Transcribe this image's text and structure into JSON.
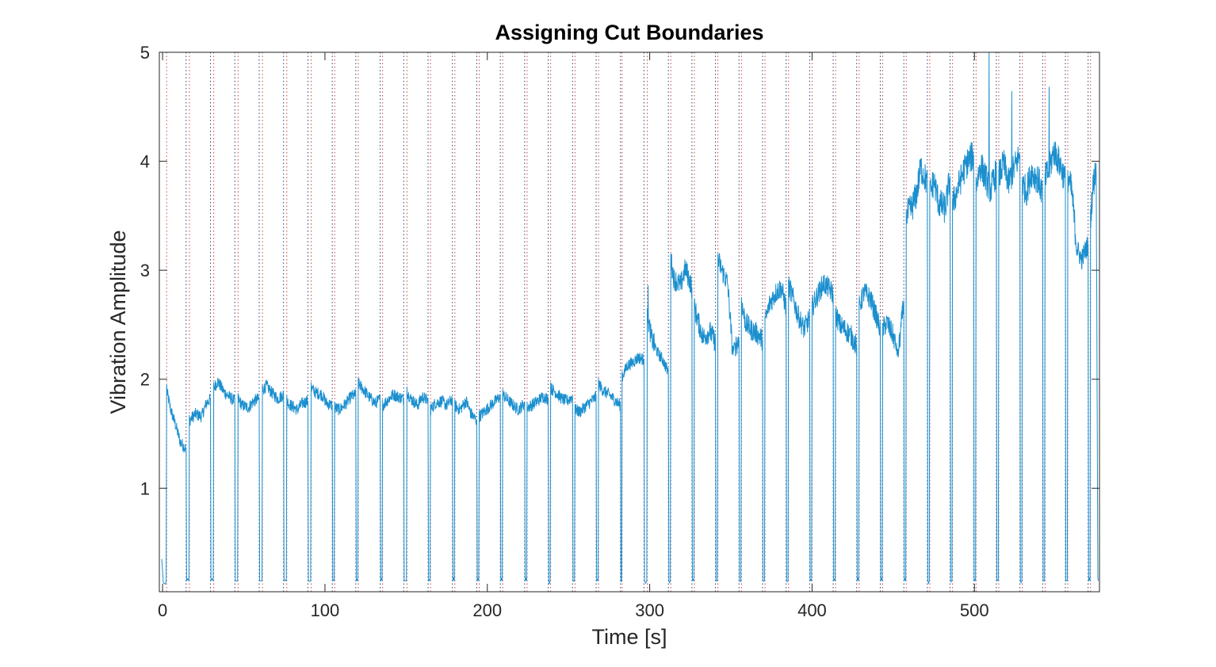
{
  "chart_data": {
    "type": "line",
    "title": "Assigning Cut Boundaries",
    "xlabel": "Time [s]",
    "ylabel": "Vibration Amplitude",
    "xlim": [
      -2,
      577
    ],
    "ylim": [
      0.05,
      5
    ],
    "xticks": [
      0,
      100,
      200,
      300,
      400,
      500
    ],
    "yticks": [
      1,
      2,
      3,
      4,
      5
    ],
    "grid": false,
    "legend": "none",
    "box": true,
    "colors": {
      "signal": "#1b8fce",
      "cut_start": "#d9443f",
      "cut_end": "#2b3f7a",
      "axis": "#262626"
    },
    "cut_starts": [
      2.5,
      16.5,
      31.5,
      46.5,
      61.5,
      76.5,
      91.5,
      106.0,
      120.5,
      135.5,
      150.5,
      165.0,
      180.0,
      195.0,
      209.5,
      224.5,
      239.0,
      254.0,
      268.5,
      283.0,
      298.5,
      313.0,
      327.5,
      342.0,
      356.5,
      371.0,
      385.5,
      400.0,
      414.5,
      429.0,
      443.5,
      458.0,
      472.5,
      486.5,
      501.0,
      515.0,
      529.5,
      543.5,
      557.5,
      571.5
    ],
    "cut_ends": [
      14.5,
      29.5,
      44.5,
      59.5,
      74.5,
      89.5,
      104.5,
      119.0,
      134.0,
      148.5,
      163.5,
      178.5,
      193.5,
      208.0,
      223.0,
      237.5,
      252.5,
      267.0,
      282.0,
      296.5,
      311.5,
      326.0,
      340.5,
      355.0,
      369.5,
      384.0,
      398.5,
      413.0,
      427.5,
      442.0,
      456.5,
      471.0,
      485.0,
      499.5,
      513.5,
      528.0,
      542.0,
      556.0,
      570.0
    ],
    "segments": [
      {
        "start": 2.5,
        "end": 14.5,
        "points": [
          [
            2.5,
            1.9
          ],
          [
            5,
            1.72
          ],
          [
            8,
            1.58
          ],
          [
            11,
            1.42
          ],
          [
            14.5,
            1.36
          ]
        ]
      },
      {
        "start": 16.5,
        "end": 29.5,
        "points": [
          [
            16.5,
            1.62
          ],
          [
            20,
            1.68
          ],
          [
            24,
            1.66
          ],
          [
            27,
            1.78
          ],
          [
            29.5,
            1.82
          ]
        ]
      },
      {
        "start": 31.5,
        "end": 44.5,
        "points": [
          [
            31.5,
            1.92
          ],
          [
            34,
            1.98
          ],
          [
            38,
            1.88
          ],
          [
            41,
            1.84
          ],
          [
            44.5,
            1.8
          ]
        ]
      },
      {
        "start": 46.5,
        "end": 59.5,
        "points": [
          [
            46.5,
            1.82
          ],
          [
            49,
            1.76
          ],
          [
            53,
            1.74
          ],
          [
            56,
            1.8
          ],
          [
            59.5,
            1.82
          ]
        ]
      },
      {
        "start": 61.5,
        "end": 74.5,
        "points": [
          [
            61.5,
            1.9
          ],
          [
            64,
            1.94
          ],
          [
            67,
            1.88
          ],
          [
            71,
            1.82
          ],
          [
            74.5,
            1.86
          ]
        ]
      },
      {
        "start": 76.5,
        "end": 89.5,
        "points": [
          [
            76.5,
            1.8
          ],
          [
            79,
            1.76
          ],
          [
            83,
            1.72
          ],
          [
            86,
            1.78
          ],
          [
            89.5,
            1.8
          ]
        ]
      },
      {
        "start": 91.5,
        "end": 104.5,
        "points": [
          [
            91.5,
            1.92
          ],
          [
            94,
            1.88
          ],
          [
            98,
            1.86
          ],
          [
            101,
            1.78
          ],
          [
            104.5,
            1.76
          ]
        ]
      },
      {
        "start": 106.0,
        "end": 119.0,
        "points": [
          [
            106,
            1.74
          ],
          [
            109,
            1.72
          ],
          [
            113,
            1.78
          ],
          [
            116,
            1.84
          ],
          [
            119,
            1.86
          ]
        ]
      },
      {
        "start": 120.5,
        "end": 134.0,
        "points": [
          [
            120.5,
            1.96
          ],
          [
            123,
            1.92
          ],
          [
            127,
            1.84
          ],
          [
            131,
            1.78
          ],
          [
            134,
            1.82
          ]
        ]
      },
      {
        "start": 135.5,
        "end": 148.5,
        "points": [
          [
            135.5,
            1.76
          ],
          [
            138,
            1.8
          ],
          [
            142,
            1.86
          ],
          [
            145,
            1.84
          ],
          [
            148.5,
            1.82
          ]
        ]
      },
      {
        "start": 150.5,
        "end": 163.5,
        "points": [
          [
            150.5,
            1.88
          ],
          [
            153,
            1.82
          ],
          [
            157,
            1.76
          ],
          [
            160,
            1.84
          ],
          [
            163.5,
            1.8
          ]
        ]
      },
      {
        "start": 165.0,
        "end": 178.5,
        "points": [
          [
            165,
            1.72
          ],
          [
            168,
            1.78
          ],
          [
            172,
            1.8
          ],
          [
            175,
            1.76
          ],
          [
            178.5,
            1.82
          ]
        ]
      },
      {
        "start": 180.0,
        "end": 193.5,
        "points": [
          [
            180,
            1.76
          ],
          [
            183,
            1.72
          ],
          [
            187,
            1.8
          ],
          [
            190,
            1.68
          ],
          [
            193.5,
            1.62
          ]
        ]
      },
      {
        "start": 195.0,
        "end": 208.0,
        "points": [
          [
            195,
            1.66
          ],
          [
            198,
            1.7
          ],
          [
            202,
            1.76
          ],
          [
            205,
            1.8
          ],
          [
            208,
            1.84
          ]
        ]
      },
      {
        "start": 209.5,
        "end": 223.0,
        "points": [
          [
            209.5,
            1.86
          ],
          [
            212,
            1.82
          ],
          [
            216,
            1.76
          ],
          [
            219,
            1.72
          ],
          [
            223,
            1.78
          ]
        ]
      },
      {
        "start": 224.5,
        "end": 237.5,
        "points": [
          [
            224.5,
            1.74
          ],
          [
            227,
            1.76
          ],
          [
            231,
            1.8
          ],
          [
            234,
            1.84
          ],
          [
            237.5,
            1.82
          ]
        ]
      },
      {
        "start": 239.0,
        "end": 252.5,
        "points": [
          [
            239,
            1.92
          ],
          [
            242,
            1.88
          ],
          [
            246,
            1.82
          ],
          [
            249,
            1.8
          ],
          [
            252.5,
            1.84
          ]
        ]
      },
      {
        "start": 254.0,
        "end": 267.0,
        "points": [
          [
            254,
            1.72
          ],
          [
            257,
            1.7
          ],
          [
            261,
            1.76
          ],
          [
            264,
            1.8
          ],
          [
            267,
            1.84
          ]
        ]
      },
      {
        "start": 268.5,
        "end": 282.0,
        "points": [
          [
            268.5,
            1.96
          ],
          [
            271,
            1.9
          ],
          [
            275,
            1.86
          ],
          [
            279,
            1.8
          ],
          [
            282,
            1.76
          ]
        ]
      },
      {
        "start": 283.0,
        "end": 296.5,
        "points": [
          [
            283,
            2.02
          ],
          [
            286,
            2.12
          ],
          [
            290,
            2.16
          ],
          [
            293,
            2.2
          ],
          [
            296.5,
            2.18
          ]
        ]
      },
      {
        "start": 298.5,
        "end": 311.5,
        "points": [
          [
            298.5,
            2.6
          ],
          [
            301,
            2.38
          ],
          [
            305,
            2.24
          ],
          [
            308,
            2.18
          ],
          [
            311.5,
            2.06
          ]
        ]
      },
      {
        "start": 313.0,
        "end": 326.0,
        "points": [
          [
            313,
            3.1
          ],
          [
            315,
            2.92
          ],
          [
            319,
            2.86
          ],
          [
            322,
            3.02
          ],
          [
            326,
            2.84
          ]
        ]
      },
      {
        "start": 327.5,
        "end": 340.5,
        "points": [
          [
            327.5,
            2.66
          ],
          [
            330,
            2.52
          ],
          [
            333,
            2.38
          ],
          [
            337,
            2.44
          ],
          [
            340.5,
            2.34
          ]
        ]
      },
      {
        "start": 342.0,
        "end": 355.0,
        "points": [
          [
            342,
            3.1
          ],
          [
            345,
            2.98
          ],
          [
            348,
            2.88
          ],
          [
            351,
            2.26
          ],
          [
            355,
            2.36
          ]
        ]
      },
      {
        "start": 356.5,
        "end": 369.5,
        "points": [
          [
            356.5,
            2.7
          ],
          [
            359,
            2.52
          ],
          [
            362,
            2.46
          ],
          [
            366,
            2.42
          ],
          [
            369.5,
            2.36
          ]
        ]
      },
      {
        "start": 371.0,
        "end": 384.0,
        "points": [
          [
            371,
            2.52
          ],
          [
            374,
            2.7
          ],
          [
            378,
            2.8
          ],
          [
            381,
            2.84
          ],
          [
            384,
            2.66
          ]
        ]
      },
      {
        "start": 385.5,
        "end": 398.5,
        "points": [
          [
            385.5,
            2.86
          ],
          [
            388,
            2.76
          ],
          [
            391,
            2.6
          ],
          [
            395,
            2.46
          ],
          [
            398.5,
            2.56
          ]
        ]
      },
      {
        "start": 400.0,
        "end": 413.0,
        "points": [
          [
            400,
            2.66
          ],
          [
            403,
            2.76
          ],
          [
            407,
            2.88
          ],
          [
            410,
            2.84
          ],
          [
            413,
            2.78
          ]
        ]
      },
      {
        "start": 414.5,
        "end": 427.5,
        "points": [
          [
            414.5,
            2.6
          ],
          [
            417,
            2.5
          ],
          [
            420,
            2.46
          ],
          [
            424,
            2.4
          ],
          [
            427.5,
            2.3
          ]
        ]
      },
      {
        "start": 429.0,
        "end": 442.0,
        "points": [
          [
            429,
            2.66
          ],
          [
            432,
            2.8
          ],
          [
            436,
            2.74
          ],
          [
            439,
            2.6
          ],
          [
            442,
            2.46
          ]
        ]
      },
      {
        "start": 443.5,
        "end": 456.5,
        "points": [
          [
            443.5,
            2.46
          ],
          [
            446,
            2.52
          ],
          [
            450,
            2.4
          ],
          [
            453,
            2.22
          ],
          [
            456.5,
            2.72
          ]
        ]
      },
      {
        "start": 458.0,
        "end": 471.0,
        "points": [
          [
            458,
            3.5
          ],
          [
            461,
            3.56
          ],
          [
            464,
            3.68
          ],
          [
            467,
            3.94
          ],
          [
            471,
            3.8
          ]
        ]
      },
      {
        "start": 472.5,
        "end": 485.0,
        "points": [
          [
            472.5,
            3.7
          ],
          [
            475,
            3.82
          ],
          [
            478,
            3.62
          ],
          [
            482,
            3.56
          ],
          [
            485,
            3.86
          ]
        ]
      },
      {
        "start": 486.5,
        "end": 499.5,
        "points": [
          [
            486.5,
            3.6
          ],
          [
            489,
            3.72
          ],
          [
            493,
            3.9
          ],
          [
            496,
            4.0
          ],
          [
            499.5,
            4.06
          ]
        ]
      },
      {
        "start": 501.0,
        "end": 513.5,
        "points": [
          [
            501,
            3.8
          ],
          [
            504,
            3.96
          ],
          [
            507,
            3.84
          ],
          [
            510,
            3.74
          ],
          [
            513.5,
            3.9
          ]
        ]
      },
      {
        "start": 515.0,
        "end": 528.0,
        "points": [
          [
            515,
            3.86
          ],
          [
            518,
            3.98
          ],
          [
            521,
            3.8
          ],
          [
            525,
            3.96
          ],
          [
            528,
            4.06
          ]
        ]
      },
      {
        "start": 529.5,
        "end": 542.0,
        "points": [
          [
            529.5,
            3.8
          ],
          [
            532,
            3.72
          ],
          [
            535,
            3.9
          ],
          [
            539,
            3.84
          ],
          [
            542,
            3.7
          ]
        ]
      },
      {
        "start": 543.5,
        "end": 556.0,
        "points": [
          [
            543.5,
            3.84
          ],
          [
            546,
            3.92
          ],
          [
            549,
            4.1
          ],
          [
            553,
            3.96
          ],
          [
            556,
            3.82
          ]
        ]
      },
      {
        "start": 557.5,
        "end": 570.0,
        "points": [
          [
            557.5,
            3.86
          ],
          [
            560,
            3.72
          ],
          [
            563,
            3.2
          ],
          [
            566,
            3.1
          ],
          [
            570,
            3.24
          ]
        ]
      },
      {
        "start": 571.5,
        "end": 576.0,
        "points": [
          [
            571.5,
            3.5
          ],
          [
            573,
            3.76
          ],
          [
            575,
            3.96
          ],
          [
            576,
            0.18
          ]
        ]
      }
    ],
    "spikes": [
      [
        299,
        2.86
      ],
      [
        340.5,
        3.3
      ],
      [
        471,
        4.36
      ],
      [
        499.5,
        4.38
      ],
      [
        509,
        5.0
      ],
      [
        523,
        4.64
      ],
      [
        546,
        4.68
      ]
    ]
  }
}
